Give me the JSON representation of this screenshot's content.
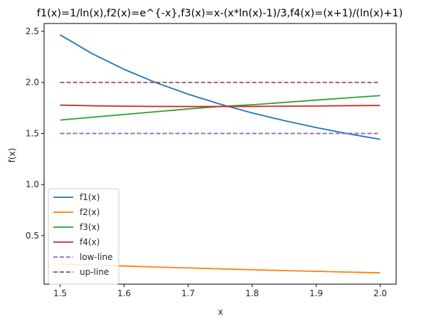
{
  "chart_data": {
    "type": "line",
    "title": "f1(x)=1/ln(x),f2(x)=e^{-x},f3(x)=x-(x*ln(x)-1)/3,f4(x)=(x+1)/(ln(x)+1)",
    "xlabel": "x",
    "ylabel": "f(x)",
    "xlim": [
      1.475,
      2.025
    ],
    "ylim": [
      0.0245,
      2.577
    ],
    "xticks": [
      1.5,
      1.6,
      1.7,
      1.8,
      1.9,
      2.0
    ],
    "xtick_labels": [
      "1.5",
      "1.6",
      "1.7",
      "1.8",
      "1.9",
      "2.0"
    ],
    "yticks": [
      0.5,
      1.0,
      1.5,
      2.0,
      2.5
    ],
    "ytick_labels": [
      "0.5",
      "1.0",
      "1.5",
      "2.0",
      "2.5"
    ],
    "grid": false,
    "legend_position": "lower-left",
    "x": [
      1.5,
      1.55,
      1.6,
      1.65,
      1.7,
      1.75,
      1.8,
      1.85,
      1.9,
      1.95,
      2.0
    ],
    "series": [
      {
        "name": "f1(x)",
        "color": "#1f77b4",
        "dash": "solid",
        "values": [
          2.466,
          2.282,
          2.128,
          1.997,
          1.885,
          1.787,
          1.701,
          1.626,
          1.558,
          1.497,
          1.443
        ]
      },
      {
        "name": "f2(x)",
        "color": "#ff7f0e",
        "dash": "solid",
        "values": [
          0.223,
          0.212,
          0.202,
          0.192,
          0.183,
          0.174,
          0.165,
          0.157,
          0.15,
          0.142,
          0.135
        ]
      },
      {
        "name": "f3(x)",
        "color": "#2ca02c",
        "dash": "solid",
        "values": [
          1.631,
          1.659,
          1.686,
          1.713,
          1.74,
          1.765,
          1.781,
          1.804,
          1.827,
          1.849,
          1.871
        ]
      },
      {
        "name": "f4(x)",
        "color": "#d62728",
        "dash": "solid",
        "values": [
          1.778,
          1.771,
          1.767,
          1.765,
          1.764,
          1.764,
          1.765,
          1.767,
          1.769,
          1.772,
          1.774
        ]
      },
      {
        "name": "low-line",
        "color": "#9467bd",
        "dash": "dashed",
        "values": [
          1.5,
          1.5,
          1.5,
          1.5,
          1.5,
          1.5,
          1.5,
          1.5,
          1.5,
          1.5,
          1.5
        ]
      },
      {
        "name": "up-line",
        "color": "#8c564b",
        "dash": "dashed",
        "values": [
          2.0,
          2.0,
          2.0,
          2.0,
          2.0,
          2.0,
          2.0,
          2.0,
          2.0,
          2.0,
          2.0
        ]
      }
    ]
  }
}
